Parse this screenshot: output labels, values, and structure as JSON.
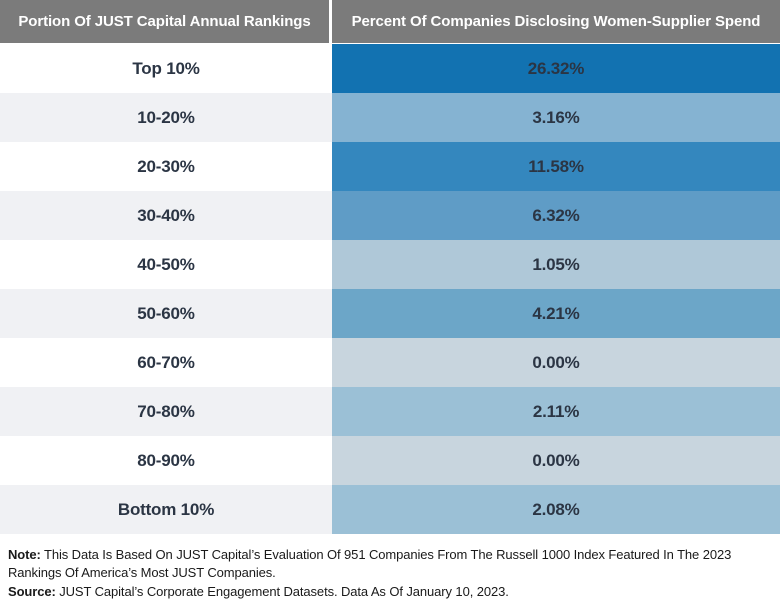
{
  "header": {
    "left_label": "Portion Of JUST Capital Annual Rankings",
    "right_label": "Percent Of Companies Disclosing Women-Supplier Spend",
    "bg_color": "#7B7B7B",
    "text_color": "#FFFFFF"
  },
  "chart_data": {
    "type": "table",
    "title": "",
    "columns": [
      "Portion Of JUST Capital Annual Rankings",
      "Percent Of Companies Disclosing Women-Supplier Spend"
    ],
    "categories": [
      "Top 10%",
      "10-20%",
      "20-30%",
      "30-40%",
      "40-50%",
      "50-60%",
      "60-70%",
      "70-80%",
      "80-90%",
      "Bottom 10%"
    ],
    "values": [
      26.32,
      3.16,
      11.58,
      6.32,
      1.05,
      4.21,
      0.0,
      2.11,
      0.0,
      2.08
    ],
    "value_labels": [
      "26.32%",
      "3.16%",
      "11.58%",
      "6.32%",
      "1.05%",
      "4.21%",
      "0.00%",
      "2.11%",
      "0.00%",
      "2.08%"
    ],
    "heatmap_colors": [
      "#1272B1",
      "#85B3D2",
      "#3487BE",
      "#5F9CC6",
      "#AFC8D8",
      "#6CA6C8",
      "#C8D5DE",
      "#9BC0D6",
      "#C8D5DE",
      "#9BC0D6"
    ],
    "row_alt_colors": [
      "#FFFFFF",
      "#F0F1F4"
    ],
    "value_text_color": "#2B3544",
    "legend_position": "none",
    "grid": false
  },
  "notes": {
    "note_label": "Note:",
    "note_text": " This Data Is Based On JUST Capital’s Evaluation Of 951 Companies From The Russell 1000 Index Featured In The 2023 Rankings Of America’s Most JUST Companies.",
    "source_label": "Source:",
    "source_text": " JUST Capital’s Corporate Engagement Datasets. Data As Of January 10, 2023."
  }
}
